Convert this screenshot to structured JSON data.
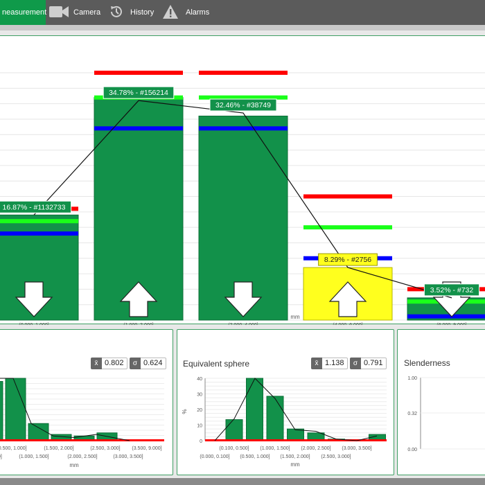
{
  "nav": {
    "measurement_label": "neasurement",
    "camera_label": "Camera",
    "history_label": "History",
    "alarms_label": "Alarms"
  },
  "colors": {
    "nav_bg": "#5b5b5b",
    "accent": "#0f9a4a",
    "bar": "#12914a",
    "highlight_bar": "#ffff1e",
    "upper_limit": "#ff0000",
    "warn_limit": "#1aff1a",
    "mean": "#0000ff"
  },
  "main_chart": {
    "xlabel": "mm",
    "ylim": [
      0,
      40
    ],
    "categories": [
      "(0.000, 1.000]",
      "(1.000, 2.000]",
      "(2.000, 4.000]",
      "(4.000, 6.000]",
      "(6.000, 9.000]"
    ],
    "bar_values": [
      17,
      36,
      33,
      8.5,
      3.6
    ],
    "line_values": [
      17,
      35.5,
      33.5,
      8.5,
      3.6
    ],
    "labels": [
      "16.87% - #1132733",
      "34.78% - #156214",
      "32.46% - #38749",
      "8.29% - #2756",
      "3.52% - #732"
    ],
    "highlight": [
      false,
      false,
      false,
      true,
      false
    ],
    "red_line": [
      18,
      40,
      40,
      20,
      5
    ],
    "green_line": [
      16,
      36,
      36,
      15,
      3
    ],
    "blue_line": [
      14,
      31,
      31,
      10,
      0.6
    ],
    "arrows": [
      "down",
      "up",
      "down",
      "up",
      "down"
    ]
  },
  "panel_left": {
    "mean_symbol": "x̄",
    "mean_value": "0.802",
    "sigma_symbol": "σ",
    "sigma_value": "0.624",
    "xlabel": "mm",
    "bar_values": [
      38,
      40,
      11,
      4,
      3,
      5,
      0.5
    ],
    "line_values": [
      40,
      40,
      11,
      3,
      2,
      4,
      0
    ],
    "tick_labels_top": [
      "(0.500, 1.000]",
      "(1.500, 2.000]",
      "(2.500, 3.000]",
      "(3.500, 9.000]"
    ],
    "tick_labels_bottom": [
      ".500]",
      "(1.000, 1.500]",
      "(2.000, 2.500]",
      "(3.000, 3.500]"
    ]
  },
  "panel_mid": {
    "title": "Equivalent sphere",
    "mean_symbol": "x̄",
    "mean_value": "1.138",
    "sigma_symbol": "σ",
    "sigma_value": "0.791",
    "ylabel": "%",
    "xlabel": "mm",
    "y_ticks": [
      "40",
      "30",
      "20",
      "10",
      "0"
    ],
    "bar_values": [
      13.5,
      40,
      28.5,
      7.5,
      5,
      1,
      0.3,
      4
    ],
    "line_values": [
      0,
      14,
      40,
      27,
      7,
      6,
      1,
      0,
      3
    ],
    "tick_labels_top": [
      "(0.100, 0.500]",
      "(1.000, 1.500]",
      "(2.000, 2.500]",
      "(3.000, 3.500]"
    ],
    "tick_labels_bottom": [
      "(0.000, 0.100]",
      "(0.500, 1.000]",
      "(1.500, 2.000]",
      "(2.500, 3.000]"
    ]
  },
  "panel_right": {
    "title": "Slenderness",
    "y_ticks": [
      "1.00",
      "0.32",
      "0.00"
    ]
  }
}
